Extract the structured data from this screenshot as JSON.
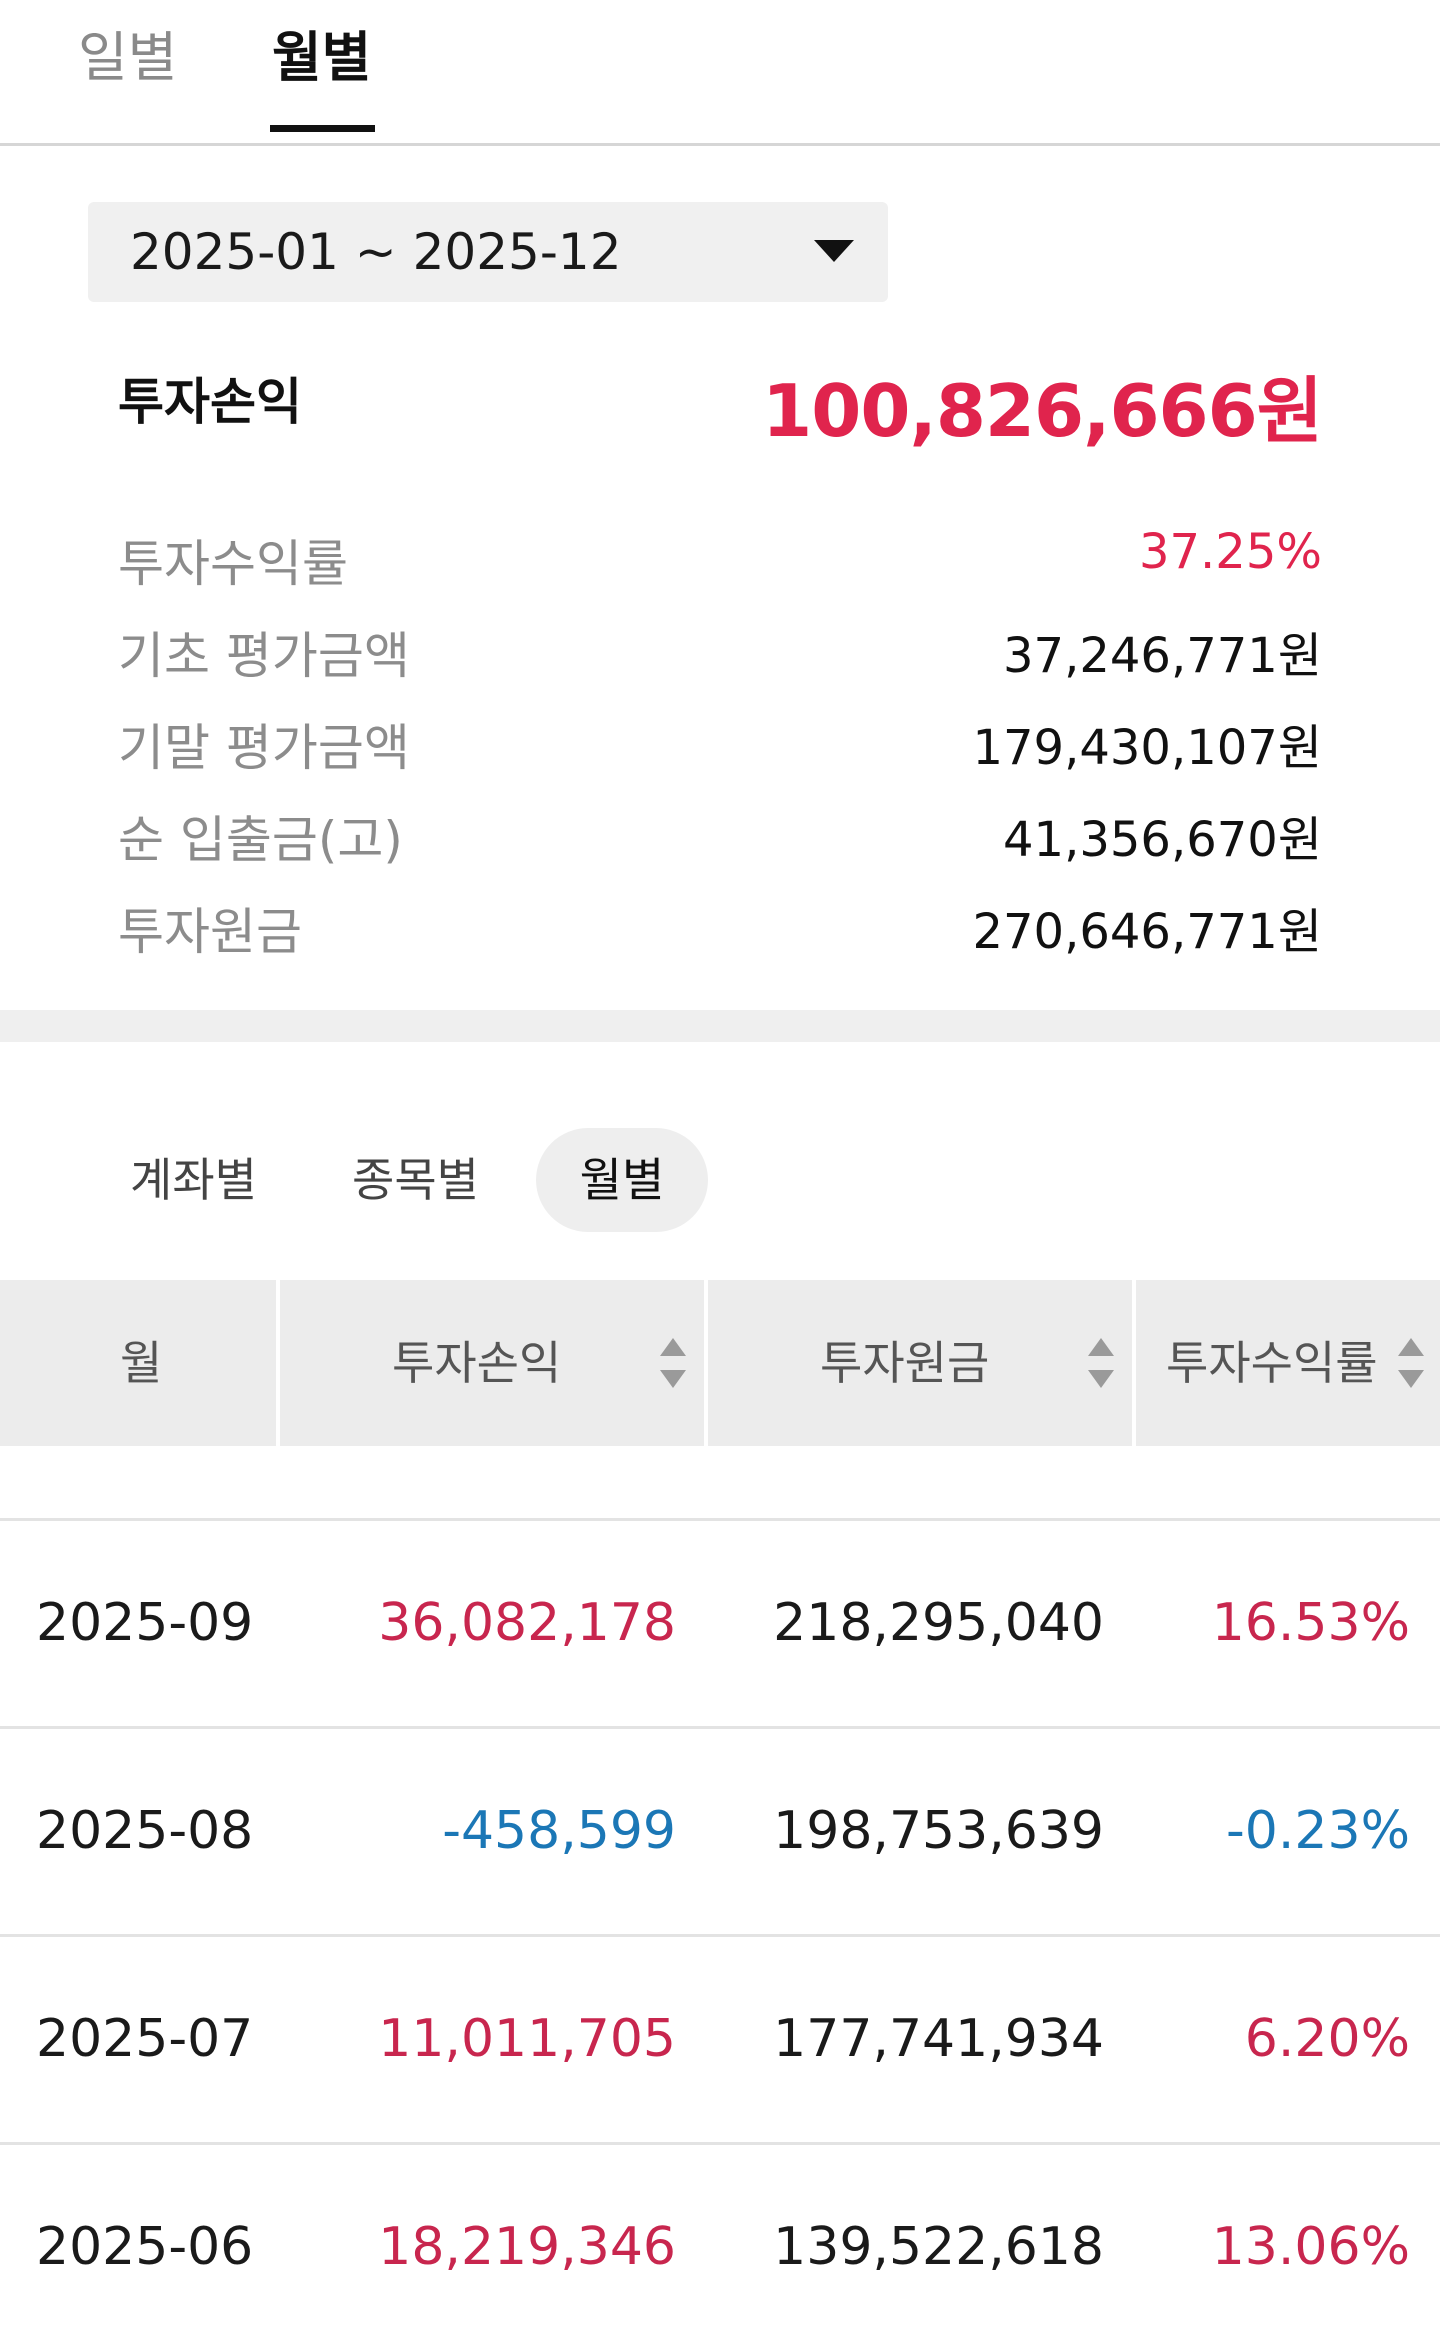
{
  "top_tabs": {
    "daily": "일별",
    "monthly": "월별"
  },
  "period": {
    "label": "2025-01 ~ 2025-12"
  },
  "summary": {
    "title": "투자손익",
    "value": "100,826,666원",
    "stats": [
      {
        "label": "투자수익률",
        "value": "37.25%"
      },
      {
        "label": "기초 평가금액",
        "value": "37,246,771원"
      },
      {
        "label": "기말 평가금액",
        "value": "179,430,107원"
      },
      {
        "label": "순 입출금(고)",
        "value": "41,356,670원"
      },
      {
        "label": "투자원금",
        "value": "270,646,771원"
      }
    ]
  },
  "sub_tabs": [
    "계좌별",
    "종목별",
    "월별"
  ],
  "table": {
    "headers": [
      "월",
      "투자손익",
      "투자원금",
      "투자수익률"
    ],
    "rows": [
      {
        "month": "2025-09",
        "profit": "36,082,178",
        "principal": "218,295,040",
        "rate": "16.53%"
      },
      {
        "month": "2025-08",
        "profit": "-458,599",
        "principal": "198,753,639",
        "rate": "-0.23%"
      },
      {
        "month": "2025-07",
        "profit": "11,011,705",
        "principal": "177,741,934",
        "rate": "6.20%"
      },
      {
        "month": "2025-06",
        "profit": "18,219,346",
        "principal": "139,522,618",
        "rate": "13.06%"
      }
    ]
  },
  "colors": {
    "positive": "#c8264e",
    "negative": "#1b77b6",
    "headline": "#e0244d"
  }
}
